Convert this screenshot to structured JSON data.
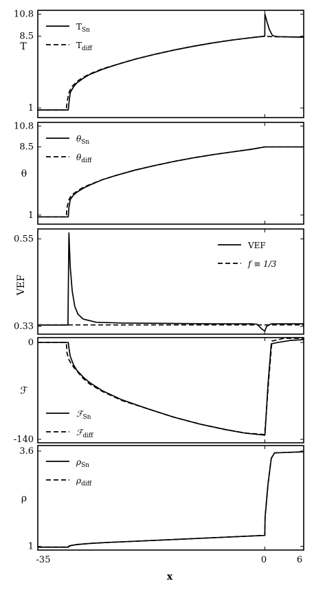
{
  "figure": {
    "xlabel": "x",
    "x_ticks": [
      "-35",
      "0",
      "6"
    ]
  },
  "chart_data": [
    {
      "type": "line",
      "ylabel": "T",
      "xlim": [
        -35,
        6
      ],
      "ylim": [
        0,
        11.2
      ],
      "y_ticks": [
        "1",
        "8.5",
        "10.8"
      ],
      "y_tick_values": [
        1,
        8.5,
        10.8
      ],
      "legend_position": "top-left",
      "series": [
        {
          "name": "T",
          "name_sub": "Sn",
          "style": "solid",
          "points": [
            [
              -35,
              0.8
            ],
            [
              -30.3,
              0.8
            ],
            [
              -30.2,
              1.5
            ],
            [
              -30,
              2.6
            ],
            [
              -29.5,
              3.2
            ],
            [
              -29,
              3.6
            ],
            [
              -28,
              4.1
            ],
            [
              -27,
              4.5
            ],
            [
              -25,
              5.05
            ],
            [
              -23,
              5.5
            ],
            [
              -20,
              6.1
            ],
            [
              -17,
              6.6
            ],
            [
              -14,
              7.05
            ],
            [
              -11,
              7.45
            ],
            [
              -8,
              7.8
            ],
            [
              -5,
              8.1
            ],
            [
              -2,
              8.35
            ],
            [
              0,
              8.5
            ],
            [
              0.02,
              10.8
            ],
            [
              0.3,
              10.1
            ],
            [
              0.7,
              9.2
            ],
            [
              1.2,
              8.55
            ],
            [
              2,
              8.45
            ],
            [
              4,
              8.42
            ],
            [
              6,
              8.4
            ]
          ]
        },
        {
          "name": "T",
          "name_sub": "diff",
          "style": "dashed",
          "points": [
            [
              -35,
              0.8
            ],
            [
              -30.6,
              0.8
            ],
            [
              -30.5,
              1.6
            ],
            [
              -30.2,
              2.6
            ],
            [
              -29.8,
              3.2
            ],
            [
              -29,
              3.75
            ],
            [
              -28,
              4.2
            ],
            [
              -27,
              4.55
            ],
            [
              -25,
              5.1
            ],
            [
              -23,
              5.5
            ],
            [
              -20,
              6.1
            ],
            [
              -17,
              6.6
            ],
            [
              -14,
              7.05
            ],
            [
              -11,
              7.45
            ],
            [
              -8,
              7.8
            ],
            [
              -5,
              8.1
            ],
            [
              -2,
              8.35
            ],
            [
              0,
              8.5
            ],
            [
              1,
              8.45
            ],
            [
              6,
              8.4
            ]
          ]
        }
      ]
    },
    {
      "type": "line",
      "ylabel": "θ",
      "xlim": [
        -35,
        6
      ],
      "ylim": [
        0,
        11.2
      ],
      "y_ticks": [
        "1",
        "8.5",
        "10.8"
      ],
      "y_tick_values": [
        1,
        8.5,
        10.8
      ],
      "legend_position": "top-left",
      "series": [
        {
          "name": "θ",
          "name_sub": "Sn",
          "style": "solid",
          "points": [
            [
              -35,
              0.8
            ],
            [
              -30.3,
              0.8
            ],
            [
              -30.2,
              1.8
            ],
            [
              -30,
              2.7
            ],
            [
              -29.5,
              3.2
            ],
            [
              -29,
              3.5
            ],
            [
              -28,
              3.95
            ],
            [
              -27,
              4.3
            ],
            [
              -25,
              4.9
            ],
            [
              -23,
              5.35
            ],
            [
              -20,
              5.95
            ],
            [
              -17,
              6.45
            ],
            [
              -14,
              6.9
            ],
            [
              -11,
              7.3
            ],
            [
              -8,
              7.65
            ],
            [
              -5,
              7.95
            ],
            [
              -2,
              8.25
            ],
            [
              0,
              8.5
            ],
            [
              1,
              8.5
            ],
            [
              6,
              8.5
            ]
          ]
        },
        {
          "name": "θ",
          "name_sub": "diff",
          "style": "dashed",
          "points": [
            [
              -35,
              0.8
            ],
            [
              -30.6,
              0.8
            ],
            [
              -30.5,
              1.8
            ],
            [
              -30.2,
              2.7
            ],
            [
              -29.8,
              3.2
            ],
            [
              -29,
              3.6
            ],
            [
              -28,
              4.05
            ],
            [
              -27,
              4.35
            ],
            [
              -25,
              4.9
            ],
            [
              -23,
              5.35
            ],
            [
              -20,
              5.95
            ],
            [
              -17,
              6.45
            ],
            [
              -14,
              6.9
            ],
            [
              -11,
              7.3
            ],
            [
              -8,
              7.65
            ],
            [
              -5,
              7.95
            ],
            [
              -2,
              8.25
            ],
            [
              0,
              8.5
            ],
            [
              6,
              8.5
            ]
          ]
        }
      ]
    },
    {
      "type": "line",
      "ylabel": "VEF",
      "xlim": [
        -35,
        6
      ],
      "ylim": [
        0.31,
        0.575
      ],
      "y_ticks": [
        "0.33",
        "0.55"
      ],
      "y_tick_values": [
        0.33,
        0.55
      ],
      "legend_position": "top-right",
      "series": [
        {
          "name": "VEF",
          "name_sub": "",
          "style": "solid",
          "points": [
            [
              -35,
              0.333
            ],
            [
              -30.35,
              0.333
            ],
            [
              -30.2,
              0.565
            ],
            [
              -30,
              0.48
            ],
            [
              -29.7,
              0.42
            ],
            [
              -29.3,
              0.38
            ],
            [
              -28.8,
              0.36
            ],
            [
              -28,
              0.348
            ],
            [
              -26,
              0.34
            ],
            [
              -22,
              0.338
            ],
            [
              -15,
              0.337
            ],
            [
              -8,
              0.336
            ],
            [
              -2,
              0.336
            ],
            [
              -1.2,
              0.335
            ],
            [
              -0.4,
              0.322
            ],
            [
              0,
              0.318
            ],
            [
              0.3,
              0.33
            ],
            [
              1,
              0.336
            ],
            [
              6,
              0.336
            ]
          ]
        },
        {
          "name": "f ≡ 1/3",
          "name_sub": "",
          "style": "dashed",
          "points": [
            [
              -35,
              0.3333
            ],
            [
              6,
              0.3333
            ]
          ]
        }
      ]
    },
    {
      "type": "line",
      "ylabel": "ℱ",
      "xlim": [
        -35,
        6
      ],
      "ylim": [
        -145,
        7
      ],
      "y_ticks": [
        "-140",
        "0"
      ],
      "y_tick_values": [
        -140,
        0
      ],
      "legend_position": "bottom-left",
      "series": [
        {
          "name": "ℱ",
          "name_sub": "Sn",
          "style": "solid",
          "points": [
            [
              -35,
              0
            ],
            [
              -30.3,
              0
            ],
            [
              -30.2,
              -8
            ],
            [
              -30,
              -20
            ],
            [
              -29.5,
              -32
            ],
            [
              -29,
              -40
            ],
            [
              -28,
              -50
            ],
            [
              -27,
              -58
            ],
            [
              -25,
              -70
            ],
            [
              -22,
              -83
            ],
            [
              -18,
              -96
            ],
            [
              -14,
              -108
            ],
            [
              -10,
              -118
            ],
            [
              -6,
              -126
            ],
            [
              -3,
              -131
            ],
            [
              0,
              -134
            ],
            [
              0.05,
              -130
            ],
            [
              0.5,
              -60
            ],
            [
              1,
              -2
            ],
            [
              2,
              0
            ],
            [
              4,
              3
            ],
            [
              6,
              4
            ]
          ]
        },
        {
          "name": "ℱ",
          "name_sub": "diff",
          "style": "dashed",
          "points": [
            [
              -35,
              0
            ],
            [
              -30.6,
              0
            ],
            [
              -30.5,
              -15
            ],
            [
              -30.2,
              -25
            ],
            [
              -29.7,
              -33
            ],
            [
              -29,
              -41
            ],
            [
              -28,
              -52
            ],
            [
              -27,
              -60
            ],
            [
              -25,
              -71
            ],
            [
              -22,
              -84
            ],
            [
              -18,
              -96
            ],
            [
              -14,
              -108
            ],
            [
              -10,
              -118
            ],
            [
              -6,
              -126
            ],
            [
              -3,
              -131
            ],
            [
              0,
              -133
            ],
            [
              0.05,
              -125
            ],
            [
              0.6,
              -55
            ],
            [
              1.1,
              2
            ],
            [
              3,
              6
            ],
            [
              6,
              6
            ]
          ]
        }
      ]
    },
    {
      "type": "line",
      "ylabel": "ρ",
      "xlim": [
        -35,
        6
      ],
      "ylim": [
        0.9,
        3.75
      ],
      "y_ticks": [
        "1",
        "3.6"
      ],
      "y_tick_values": [
        1,
        3.6
      ],
      "legend_position": "top-left",
      "series": [
        {
          "name": "ρ",
          "name_sub": "Sn",
          "style": "solid",
          "points": [
            [
              -35,
              0.98
            ],
            [
              -30.3,
              0.98
            ],
            [
              -30,
              1.02
            ],
            [
              -29,
              1.05
            ],
            [
              -27,
              1.08
            ],
            [
              -24,
              1.11
            ],
            [
              -20,
              1.14
            ],
            [
              -15,
              1.18
            ],
            [
              -10,
              1.22
            ],
            [
              -5,
              1.26
            ],
            [
              0,
              1.3
            ],
            [
              0.05,
              1.8
            ],
            [
              0.5,
              2.7
            ],
            [
              1,
              3.4
            ],
            [
              1.5,
              3.55
            ],
            [
              6,
              3.58
            ]
          ]
        },
        {
          "name": "ρ",
          "name_sub": "diff",
          "style": "dashed",
          "points": [
            [
              -35,
              0.98
            ],
            [
              -30.6,
              0.98
            ],
            [
              -30,
              1.02
            ],
            [
              -29,
              1.05
            ],
            [
              -27,
              1.08
            ],
            [
              -24,
              1.11
            ],
            [
              -20,
              1.14
            ],
            [
              -15,
              1.18
            ],
            [
              -10,
              1.22
            ],
            [
              -5,
              1.26
            ],
            [
              0,
              1.3
            ],
            [
              0.05,
              1.8
            ],
            [
              0.5,
              2.7
            ],
            [
              1,
              3.4
            ],
            [
              1.5,
              3.55
            ],
            [
              6,
              3.58
            ]
          ]
        }
      ]
    }
  ]
}
